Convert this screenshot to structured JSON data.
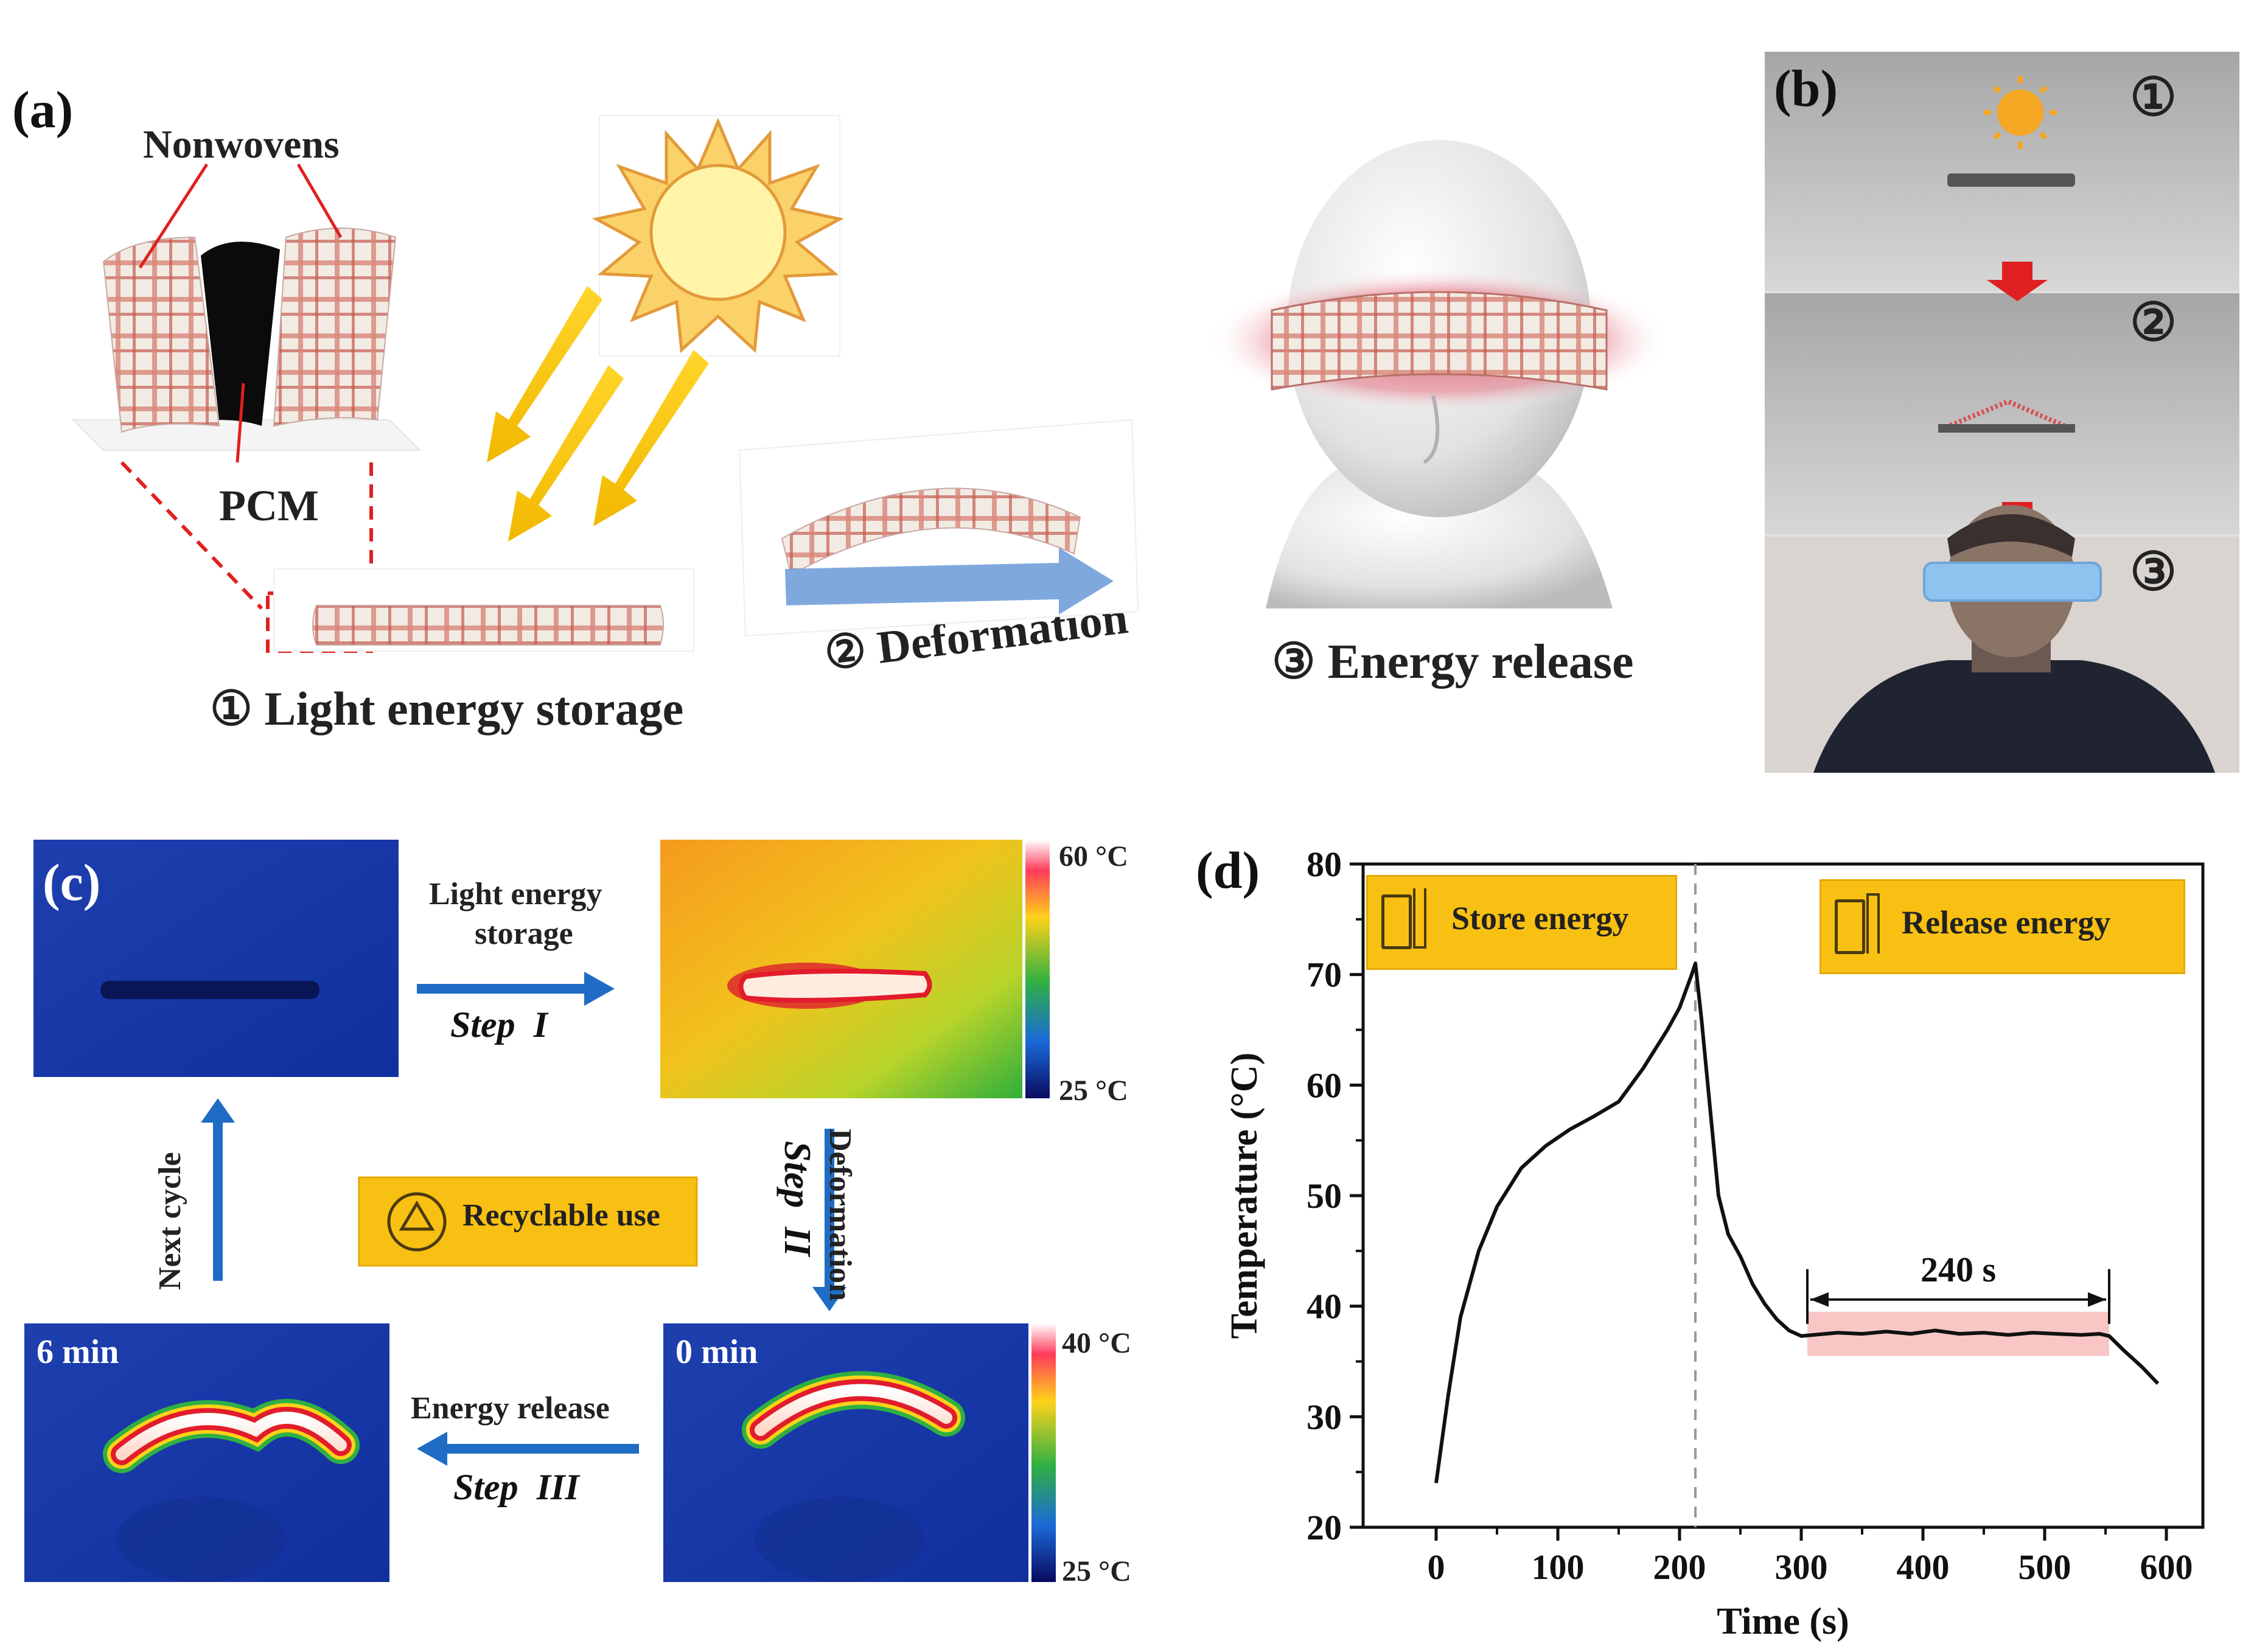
{
  "figure": {
    "panel_a": {
      "label": "(a)",
      "nonwovens": "Nonwovens",
      "pcm": "PCM",
      "step1": "① Light energy storage",
      "step2": "② Deformation",
      "step3": "③ Energy release"
    },
    "panel_b": {
      "label": "(b)",
      "steps": [
        "①",
        "②",
        "③"
      ]
    },
    "panel_c": {
      "label": "(c)",
      "light_storage_line1": "Light energy",
      "light_storage_line2": "storage",
      "step_i": "Step  I",
      "deformation": "Deformation",
      "step_ii": "Step  II",
      "energy_release": "Energy release",
      "step_iii": "Step  III",
      "next_cycle": "Next cycle",
      "recyclable": "Recyclable use",
      "time_6": "6 min",
      "time_0": "0 min",
      "scale1_max": "60 °C",
      "scale1_min": "25 °C",
      "scale2_max": "40 °C",
      "scale2_min": "25 °C"
    },
    "panel_d": {
      "label": "(d)",
      "store": "Store energy",
      "release": "Release energy",
      "span_label": "240 s"
    }
  },
  "chart_data": {
    "type": "line",
    "xlabel": "Time (s)",
    "ylabel": "Temperature (°C)",
    "xlim": [
      -60,
      630
    ],
    "ylim": [
      20,
      80
    ],
    "xticks": [
      0,
      100,
      200,
      300,
      400,
      500,
      600
    ],
    "yticks": [
      20,
      30,
      40,
      50,
      60,
      70,
      80
    ],
    "divider_x": 213,
    "highlight": {
      "x": [
        305,
        553
      ],
      "y": [
        35.5,
        39.5
      ],
      "label": "240 s"
    },
    "series": [
      {
        "name": "Temperature",
        "x": [
          0,
          10,
          20,
          35,
          50,
          70,
          90,
          110,
          130,
          150,
          170,
          190,
          200,
          205,
          210,
          213,
          218,
          225,
          232,
          240,
          250,
          260,
          270,
          280,
          290,
          300,
          310,
          330,
          350,
          370,
          390,
          410,
          430,
          450,
          470,
          490,
          510,
          530,
          545,
          553,
          565,
          580,
          593
        ],
        "y": [
          24,
          32,
          39,
          45,
          49,
          52.5,
          54.5,
          56,
          57.2,
          58.5,
          61.5,
          65,
          67,
          68.5,
          70,
          71,
          66,
          58,
          50,
          46.5,
          44.5,
          42,
          40.2,
          38.8,
          37.8,
          37.3,
          37.4,
          37.6,
          37.5,
          37.7,
          37.5,
          37.8,
          37.5,
          37.6,
          37.4,
          37.6,
          37.5,
          37.4,
          37.5,
          37.3,
          36,
          34.5,
          33
        ]
      }
    ]
  }
}
